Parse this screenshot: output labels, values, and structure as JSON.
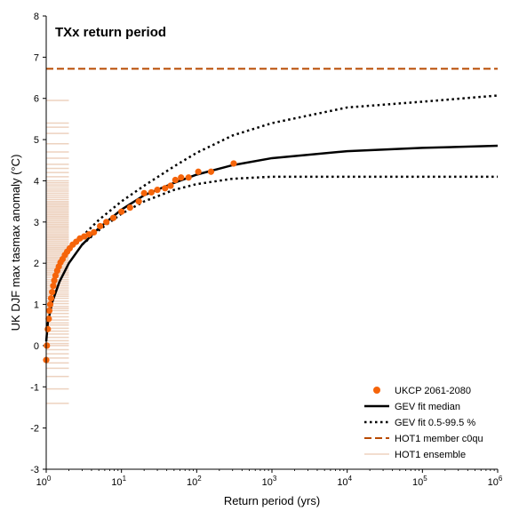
{
  "chart_data": {
    "type": "scatter",
    "title": "TXx return period",
    "xlabel": "Return period (yrs)",
    "ylabel": "UK DJF max tasmax anomaly (°C)",
    "xscale": "log",
    "xlim": [
      1,
      1000000
    ],
    "ylim": [
      -3,
      8
    ],
    "y_ticks": [
      -3,
      -2,
      -1,
      0,
      1,
      2,
      3,
      4,
      5,
      6,
      7,
      8
    ],
    "x_ticks": [
      {
        "value": 1,
        "base": "10",
        "exp": "0"
      },
      {
        "value": 10,
        "base": "10",
        "exp": "1"
      },
      {
        "value": 100,
        "base": "10",
        "exp": "2"
      },
      {
        "value": 1000,
        "base": "10",
        "exp": "3"
      },
      {
        "value": 10000,
        "base": "10",
        "exp": "4"
      },
      {
        "value": 100000,
        "base": "10",
        "exp": "5"
      },
      {
        "value": 1000000,
        "base": "10",
        "exp": "6"
      }
    ],
    "legend_position": "lower-right",
    "colors": {
      "points": "#f5640a",
      "median": "#000000",
      "bounds": "#000000",
      "hot1_member": "#b84a00",
      "hot1_ensemble": "#b84a00"
    },
    "series": [
      {
        "name": "UKCP 2061-2080",
        "type": "scatter",
        "x": [
          1.0,
          1.02,
          1.05,
          1.08,
          1.1,
          1.13,
          1.16,
          1.2,
          1.24,
          1.28,
          1.33,
          1.4,
          1.47,
          1.55,
          1.65,
          1.77,
          1.9,
          2.05,
          2.25,
          2.5,
          2.8,
          3.2,
          3.7,
          4.3,
          5.2,
          6.3,
          7.8,
          10.0,
          13.0,
          17.0,
          20.0,
          25.0,
          30.0,
          38.0,
          45.0,
          52.0,
          62.0,
          78.0,
          105.0,
          155.0,
          310.0
        ],
        "y": [
          -0.35,
          0.0,
          0.4,
          0.65,
          0.85,
          1.0,
          1.15,
          1.3,
          1.45,
          1.58,
          1.7,
          1.82,
          1.92,
          2.02,
          2.1,
          2.2,
          2.28,
          2.36,
          2.45,
          2.52,
          2.6,
          2.65,
          2.7,
          2.75,
          2.9,
          3.0,
          3.1,
          3.25,
          3.35,
          3.5,
          3.7,
          3.72,
          3.78,
          3.82,
          3.88,
          4.02,
          4.08,
          4.08,
          4.22,
          4.22,
          4.42
        ]
      },
      {
        "name": "GEV fit median",
        "type": "line",
        "x": [
          1.0,
          1.05,
          1.2,
          1.5,
          2.0,
          3.0,
          5.0,
          10.0,
          20.0,
          50.0,
          100.0,
          300.0,
          1000.0,
          10000.0,
          100000.0,
          1000000.0
        ],
        "y": [
          0.1,
          0.55,
          1.05,
          1.55,
          2.0,
          2.45,
          2.85,
          3.3,
          3.65,
          3.95,
          4.15,
          4.38,
          4.55,
          4.72,
          4.8,
          4.85
        ]
      },
      {
        "name": "GEV fit 0.5-99.5 %",
        "type": "line",
        "lines": [
          {
            "x": [
              3.0,
              5.0,
              10.0,
              20.0,
              50.0,
              100.0,
              300.0,
              1000.0,
              10000.0,
              100000.0,
              1000000.0
            ],
            "y": [
              2.65,
              3.05,
              3.5,
              3.88,
              4.35,
              4.68,
              5.1,
              5.4,
              5.78,
              5.92,
              6.07
            ]
          },
          {
            "x": [
              3.0,
              5.0,
              10.0,
              20.0,
              50.0,
              100.0,
              300.0,
              1000.0,
              10000.0,
              100000.0,
              1000000.0
            ],
            "y": [
              2.45,
              2.8,
              3.2,
              3.5,
              3.78,
              3.92,
              4.05,
              4.1,
              4.1,
              4.1,
              4.1
            ]
          }
        ]
      },
      {
        "name": "HOT1 member c0qu",
        "type": "hline",
        "y": 6.72
      },
      {
        "name": "HOT1 ensemble",
        "type": "hlines",
        "x_range": [
          1,
          2
        ],
        "y": [
          -1.4,
          -1.05,
          -0.75,
          -0.55,
          -0.42,
          -0.3,
          -0.2,
          -0.1,
          0.0,
          0.05,
          0.12,
          0.2,
          0.28,
          0.35,
          0.42,
          0.5,
          0.55,
          0.62,
          0.7,
          0.78,
          0.85,
          0.9,
          0.95,
          1.02,
          1.08,
          1.15,
          1.2,
          1.25,
          1.3,
          1.35,
          1.4,
          1.45,
          1.5,
          1.55,
          1.6,
          1.65,
          1.7,
          1.74,
          1.78,
          1.82,
          1.86,
          1.9,
          1.94,
          1.98,
          2.02,
          2.06,
          2.1,
          2.14,
          2.18,
          2.22,
          2.26,
          2.3,
          2.34,
          2.38,
          2.42,
          2.46,
          2.5,
          2.54,
          2.58,
          2.62,
          2.66,
          2.7,
          2.74,
          2.78,
          2.82,
          2.86,
          2.9,
          2.94,
          2.98,
          3.02,
          3.06,
          3.1,
          3.14,
          3.18,
          3.22,
          3.26,
          3.3,
          3.34,
          3.38,
          3.42,
          3.46,
          3.5,
          3.55,
          3.6,
          3.65,
          3.7,
          3.75,
          3.8,
          3.85,
          3.9,
          3.95,
          4.0,
          4.1,
          4.2,
          4.3,
          4.4,
          4.55,
          4.7,
          4.9,
          5.15,
          5.3,
          5.4,
          5.95
        ]
      }
    ]
  }
}
